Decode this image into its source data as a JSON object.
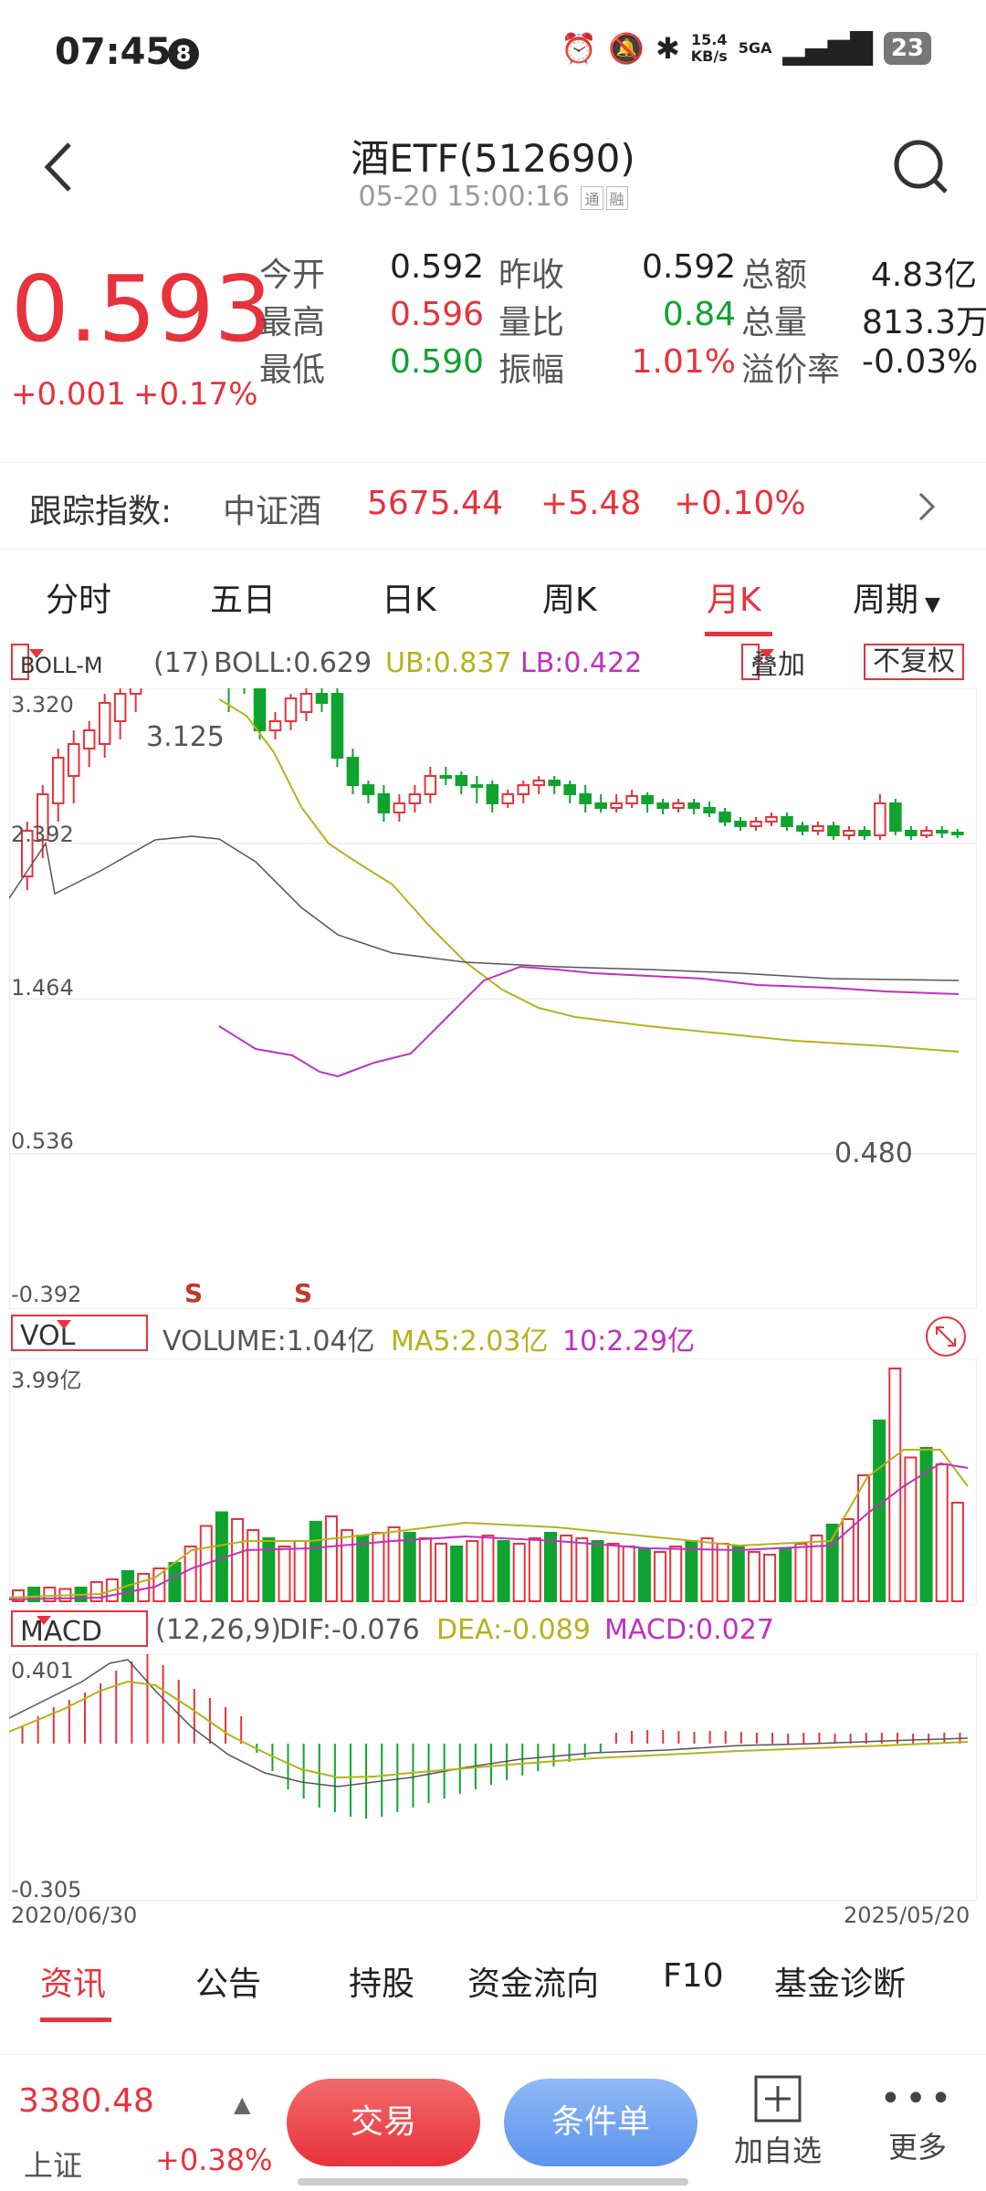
{
  "status": {
    "time": "07:45",
    "notif_count": "8",
    "net_speed": "15.4",
    "net_unit": "KB/s",
    "signal": "5GA",
    "battery": "23"
  },
  "header": {
    "title": "酒ETF(512690)",
    "subtitle": "05-20 15:00:16",
    "tag1": "通",
    "tag2": "融"
  },
  "quote": {
    "price": "0.593",
    "change": "+0.001",
    "change_pct": "+0.17%",
    "rows": [
      [
        {
          "l": "今开",
          "v": "0.592",
          "c": "#222"
        },
        {
          "l": "昨收",
          "v": "0.592",
          "c": "#222"
        },
        {
          "l": "总额",
          "v": "4.83亿",
          "c": "#222"
        }
      ],
      [
        {
          "l": "最高",
          "v": "0.596",
          "c": "#e8323c"
        },
        {
          "l": "量比",
          "v": "0.84",
          "c": "#11a32f"
        },
        {
          "l": "总量",
          "v": "813.3万",
          "c": "#222"
        }
      ],
      [
        {
          "l": "最低",
          "v": "0.590",
          "c": "#11a32f"
        },
        {
          "l": "振幅",
          "v": "1.01%",
          "c": "#e8323c"
        },
        {
          "l": "溢价率",
          "v": "-0.03%",
          "c": "#222"
        }
      ]
    ]
  },
  "index": {
    "label": "跟踪指数:",
    "name": "中证酒",
    "value": "5675.44",
    "change": "+5.48",
    "pct": "+0.10%"
  },
  "tabs": [
    "分时",
    "五日",
    "日K",
    "周K",
    "月K",
    "周期"
  ],
  "boll": {
    "selector": "BOLL-M",
    "param": "(17)",
    "boll": "BOLL:0.629",
    "ub": "UB:0.837",
    "lb": "LB:0.422",
    "overlay": "叠加",
    "fq": "不复权"
  },
  "kchart": {
    "y_labels": [
      "3.320",
      "2.392",
      "1.464",
      "0.536",
      "-0.392"
    ],
    "high_label": "3.125",
    "low_label": "0.480",
    "signals": [
      "S",
      "S"
    ]
  },
  "vol": {
    "selector": "VOL",
    "volume": "VOLUME:1.04亿",
    "ma5": "MA5:2.03亿",
    "ma10": "10:2.29亿",
    "top_label": "3.99亿"
  },
  "macd": {
    "selector": "MACD",
    "param": "(12,26,9)",
    "dif": "DIF:-0.076",
    "dea": "DEA:-0.089",
    "macd": "MACD:0.027",
    "top_label": "0.401",
    "bottom_label": "-0.305",
    "start_date": "2020/06/30",
    "end_date": "2025/05/20"
  },
  "colors": {
    "up": "#e8323c",
    "down": "#11a32f",
    "ub": "#b5b21a",
    "lb": "#c030c0",
    "mid": "#555555"
  },
  "info_tabs": [
    "资讯",
    "公告",
    "持股",
    "资金流向",
    "F10",
    "基金诊断"
  ],
  "bottom": {
    "index_value": "3380.48",
    "index_name": "上证",
    "index_pct": "+0.38%",
    "trade": "交易",
    "condition": "条件单",
    "add": "加自选",
    "more": "更多"
  }
}
